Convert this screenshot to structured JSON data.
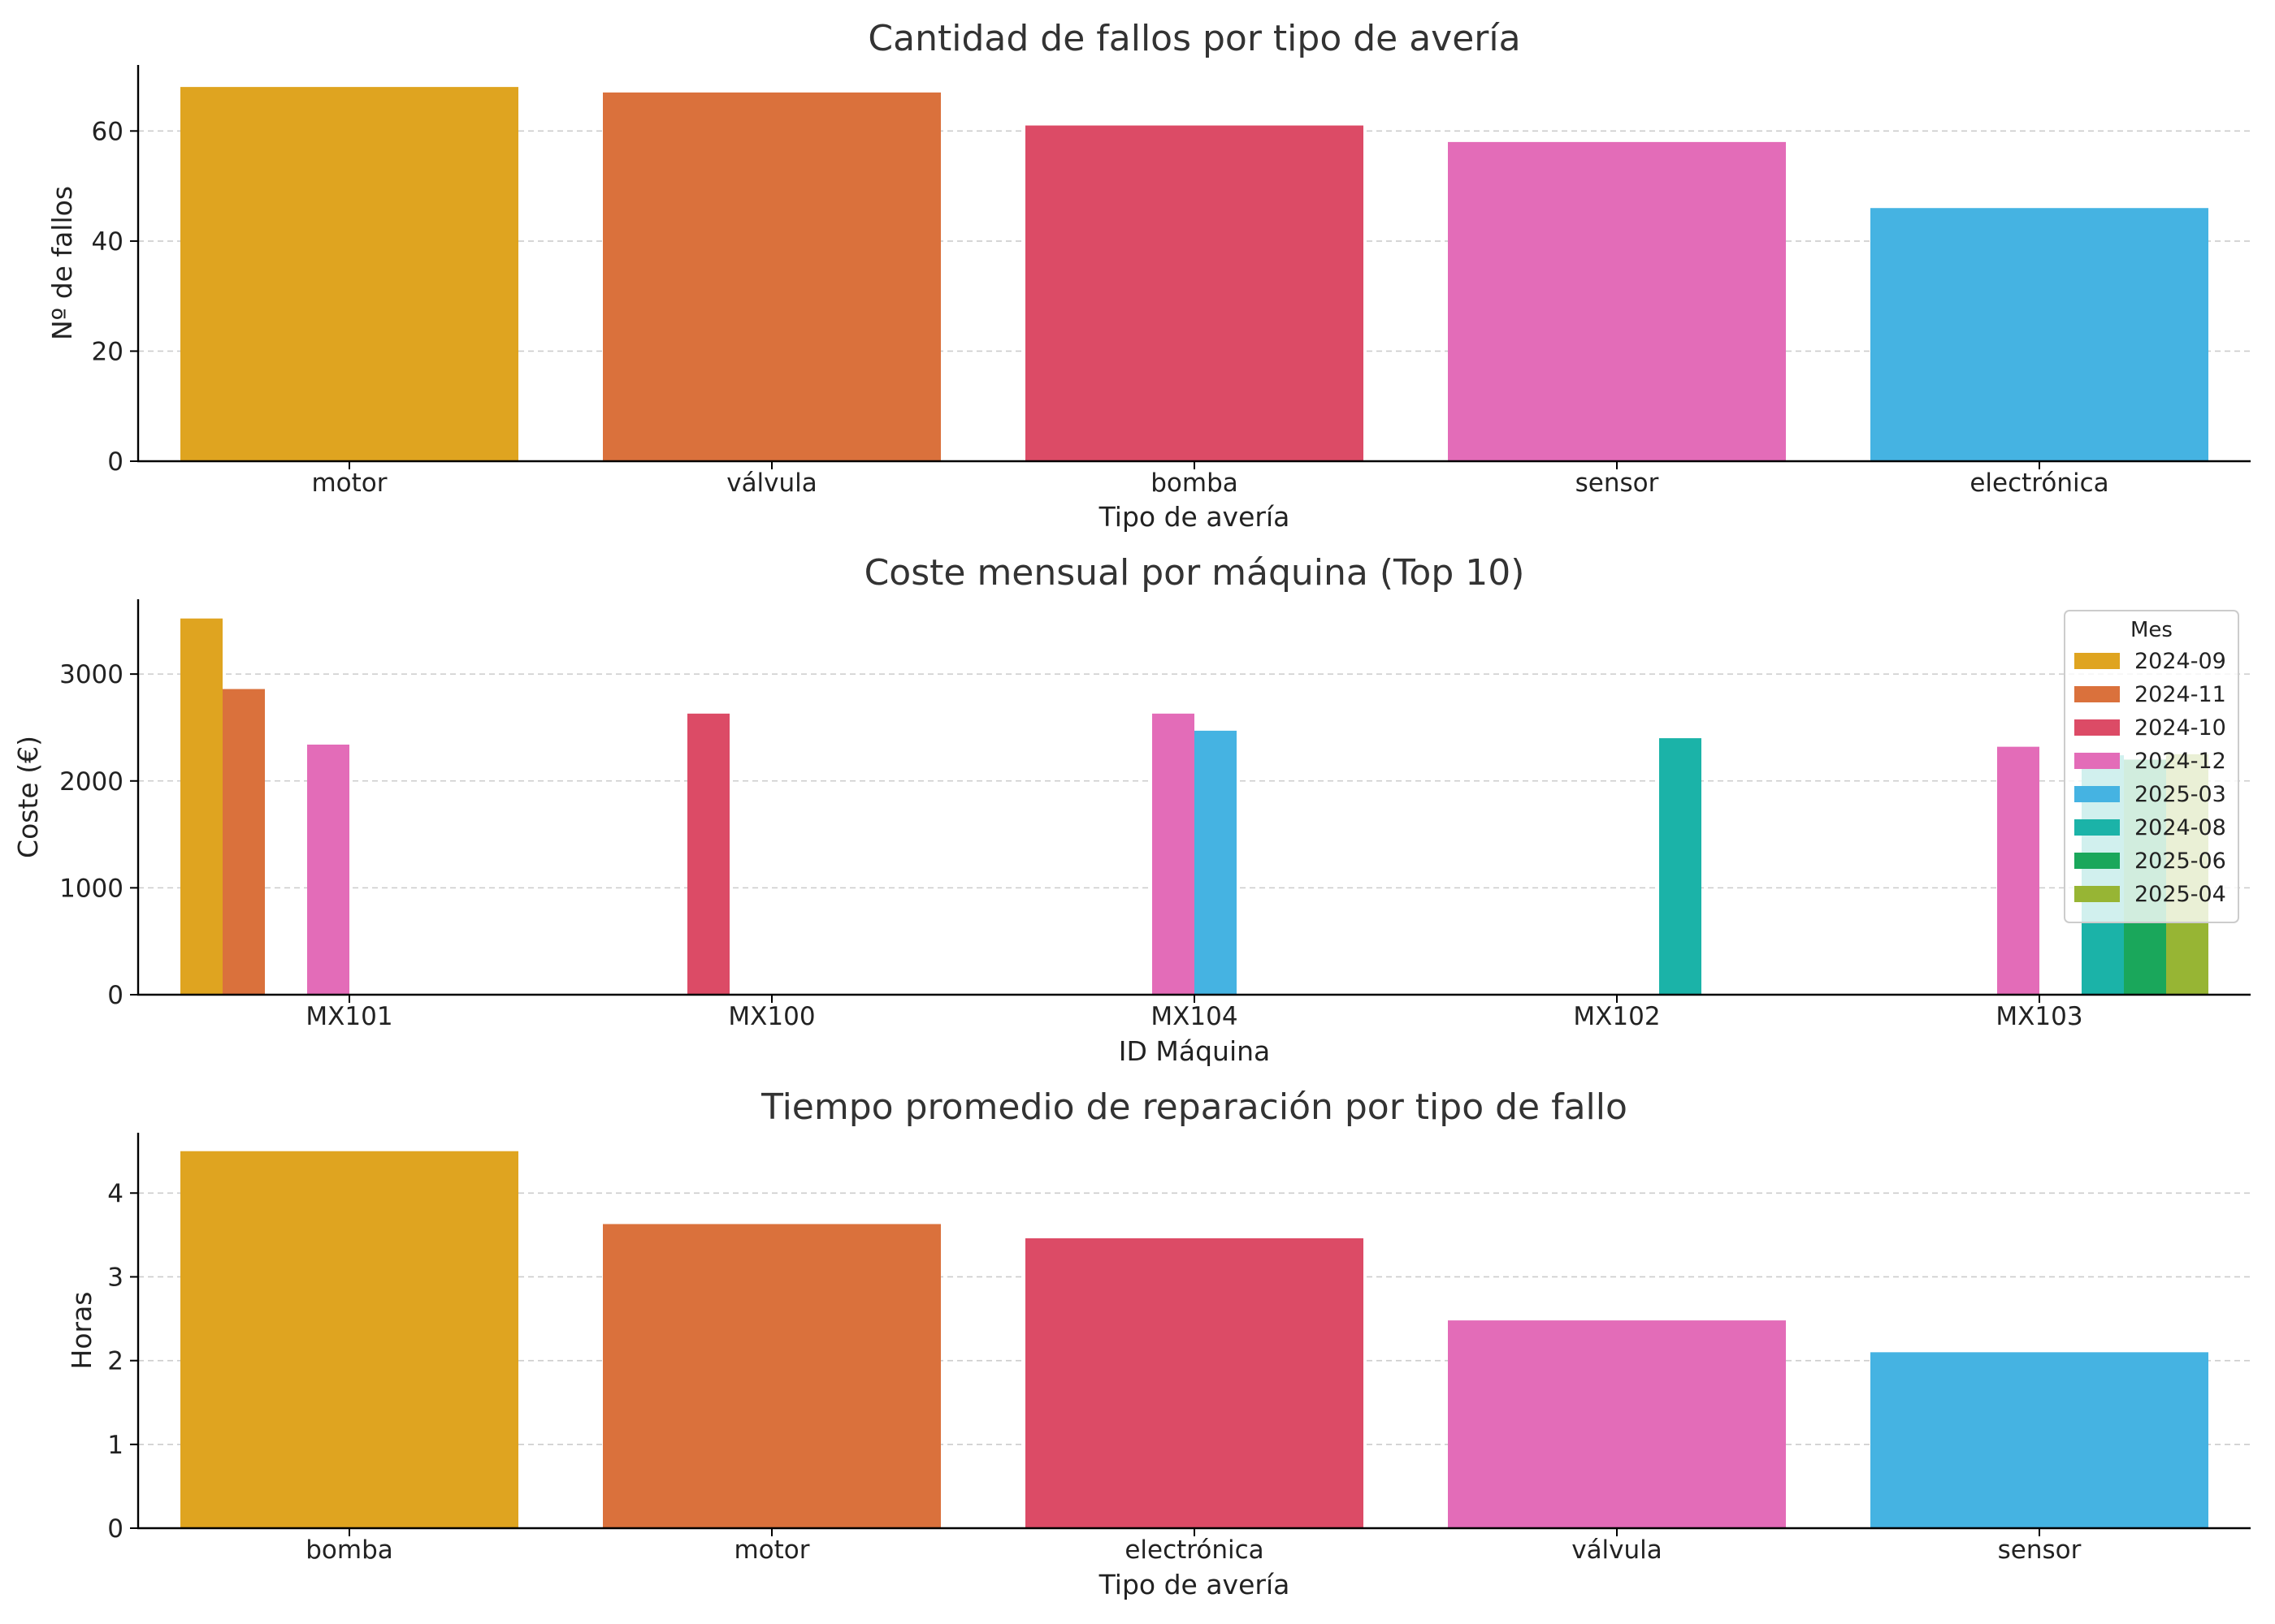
{
  "chart_data": [
    {
      "type": "bar",
      "title": "Cantidad de fallos por tipo de avería",
      "xlabel": "Tipo de avería",
      "ylabel": "Nº de fallos",
      "categories": [
        "motor",
        "válvula",
        "bomba",
        "sensor",
        "electrónica"
      ],
      "values": [
        68,
        67,
        61,
        58,
        46
      ],
      "colors": [
        "#DFA420",
        "#DA713C",
        "#DC4B66",
        "#E36CB8",
        "#45B3E2"
      ],
      "ylim": [
        0,
        72
      ],
      "yticks": [
        0,
        20,
        40,
        60
      ],
      "grid": true
    },
    {
      "type": "bar",
      "title": "Coste mensual por máquina (Top 10)",
      "xlabel": "ID Máquina",
      "ylabel": "Coste (€)",
      "categories": [
        "MX101",
        "MX100",
        "MX104",
        "MX102",
        "MX103"
      ],
      "ylim": [
        0,
        3700
      ],
      "yticks": [
        0,
        1000,
        2000,
        3000
      ],
      "grid": true,
      "legend": {
        "title": "Mes",
        "placement": "top-right"
      },
      "series": [
        {
          "name": "2024-09",
          "color": "#DFA420",
          "values": [
            3520,
            null,
            null,
            null,
            null
          ]
        },
        {
          "name": "2024-11",
          "color": "#DA713C",
          "values": [
            2860,
            null,
            null,
            null,
            null
          ]
        },
        {
          "name": "2024-10",
          "color": "#DC4B66",
          "values": [
            null,
            2630,
            null,
            null,
            null
          ]
        },
        {
          "name": "2024-12",
          "color": "#E36CB8",
          "values": [
            2340,
            null,
            2630,
            null,
            2320
          ]
        },
        {
          "name": "2025-03",
          "color": "#45B3E2",
          "values": [
            null,
            null,
            2470,
            null,
            null
          ]
        },
        {
          "name": "2024-08",
          "color": "#1BB3A8",
          "values": [
            null,
            null,
            null,
            2400,
            2240
          ]
        },
        {
          "name": "2025-06",
          "color": "#1AA75B",
          "values": [
            null,
            null,
            null,
            null,
            2200
          ]
        },
        {
          "name": "2025-04",
          "color": "#97B534",
          "values": [
            null,
            null,
            null,
            null,
            2250
          ]
        }
      ]
    },
    {
      "type": "bar",
      "title": "Tiempo promedio de reparación por tipo de fallo",
      "xlabel": "Tipo de avería",
      "ylabel": "Horas",
      "categories": [
        "bomba",
        "motor",
        "electrónica",
        "válvula",
        "sensor"
      ],
      "values": [
        4.5,
        3.63,
        3.46,
        2.48,
        2.1
      ],
      "colors": [
        "#DFA420",
        "#DA713C",
        "#DC4B66",
        "#E36CB8",
        "#45B3E2"
      ],
      "ylim": [
        0,
        4.72
      ],
      "yticks": [
        0,
        1,
        2,
        3,
        4
      ],
      "grid": true
    }
  ]
}
